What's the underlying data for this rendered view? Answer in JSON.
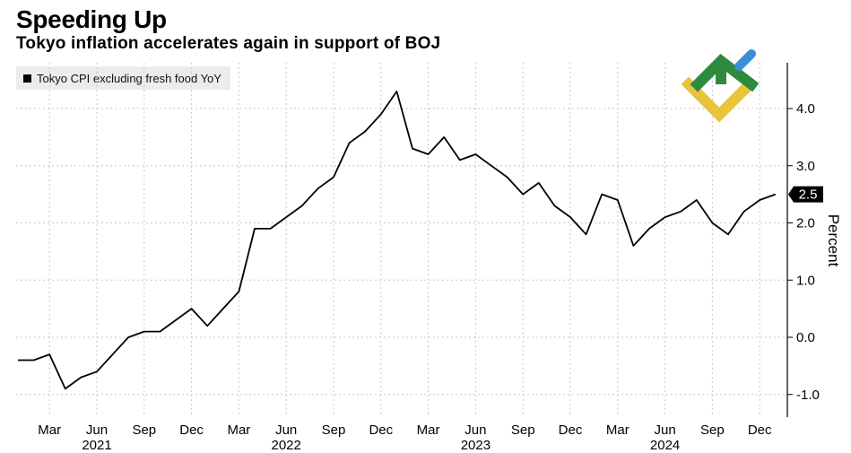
{
  "header": {
    "title": "Speeding Up",
    "subtitle": "Tokyo inflation accelerates again in support of BOJ"
  },
  "legend": {
    "label": "Tokyo CPI excluding fresh food YoY"
  },
  "logo": {
    "icon": "brand-logo-icon",
    "colors": [
      "#2e8b3e",
      "#3a8fd6",
      "#e8c43a"
    ]
  },
  "chart_data": {
    "type": "line",
    "title": "Speeding Up",
    "subtitle": "Tokyo inflation accelerates again in support of BOJ",
    "xlabel": "",
    "ylabel": "Percent",
    "ylim": [
      -1.4,
      4.8
    ],
    "yticks": [
      4.0,
      3.0,
      2.0,
      1.0,
      0.0,
      -1.0
    ],
    "ytick_labels": [
      "4.0",
      "3.0",
      "2.0",
      "1.0",
      "0.0",
      "-1.0"
    ],
    "grid": true,
    "legend_position": "top-left",
    "x_start": "2021-01",
    "month_ticks": [
      {
        "label": "Mar",
        "index": 2
      },
      {
        "label": "Jun",
        "index": 5
      },
      {
        "label": "Sep",
        "index": 8
      },
      {
        "label": "Dec",
        "index": 11
      },
      {
        "label": "Mar",
        "index": 14
      },
      {
        "label": "Jun",
        "index": 17
      },
      {
        "label": "Sep",
        "index": 20
      },
      {
        "label": "Dec",
        "index": 23
      },
      {
        "label": "Mar",
        "index": 26
      },
      {
        "label": "Jun",
        "index": 29
      },
      {
        "label": "Sep",
        "index": 32
      },
      {
        "label": "Dec",
        "index": 35
      },
      {
        "label": "Mar",
        "index": 38
      },
      {
        "label": "Jun",
        "index": 41
      },
      {
        "label": "Sep",
        "index": 44
      },
      {
        "label": "Dec",
        "index": 47
      }
    ],
    "year_ticks": [
      {
        "label": "2021",
        "index": 5
      },
      {
        "label": "2022",
        "index": 17
      },
      {
        "label": "2023",
        "index": 29
      },
      {
        "label": "2024",
        "index": 41
      }
    ],
    "series": [
      {
        "name": "Tokyo CPI excluding fresh food YoY",
        "color": "#000000",
        "values": [
          -0.4,
          -0.4,
          -0.3,
          -0.9,
          -0.7,
          -0.6,
          -0.3,
          0.0,
          0.1,
          0.1,
          0.3,
          0.5,
          0.2,
          0.5,
          0.8,
          1.9,
          1.9,
          2.1,
          2.3,
          2.6,
          2.8,
          3.4,
          3.6,
          3.9,
          4.3,
          3.3,
          3.2,
          3.5,
          3.1,
          3.2,
          3.0,
          2.8,
          2.5,
          2.7,
          2.3,
          2.1,
          1.8,
          2.5,
          2.4,
          1.6,
          1.9,
          2.1,
          2.2,
          2.4,
          2.0,
          1.8,
          2.2,
          2.4,
          2.5
        ]
      }
    ],
    "last_value_label": "2.5"
  }
}
